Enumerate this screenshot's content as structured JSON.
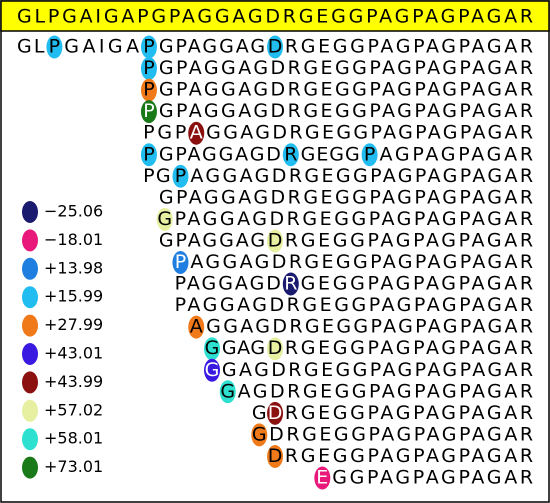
{
  "sequence": "GLPGAIGAPGPAGGAGDRGEGGPAGPAGPAGAR",
  "rows": [
    {
      "segments": [
        "GL",
        {
          "text": "P",
          "color": "#22bdf0"
        },
        "GAIGA",
        {
          "text": "P",
          "color": "#22bdf0"
        },
        "GPAGGAG",
        {
          "text": "D",
          "color": "#22bdf0"
        },
        "RGEGGPAGPAGPAGAR"
      ]
    },
    {
      "segments": [
        {
          "text": "P",
          "color": "#22bdf0"
        },
        "GPAGGAGDRGEGGPAGPAGPAGAR"
      ]
    },
    {
      "segments": [
        {
          "text": "P",
          "color": "#f07a1a"
        },
        "GPAGGAGDRGEGGPAGPAGPAGAR"
      ]
    },
    {
      "segments": [
        {
          "text": "P",
          "color": "#1a7a1a"
        },
        "GPAGGAGDRGEGGPAGPAGPAGAR"
      ]
    },
    {
      "segments": [
        "PGP",
        {
          "text": "A",
          "color": "#8b1010"
        },
        "GGAGDRGEGGPAGPAGPAGAR"
      ]
    },
    {
      "segments": [
        {
          "text": "P",
          "color": "#22bdf0"
        },
        "GPAGGAGD",
        {
          "text": "R",
          "color": "#22bdf0"
        },
        "GEGG",
        {
          "text": "P",
          "color": "#22bdf0"
        },
        "AGPAGPAGAR"
      ]
    },
    {
      "segments": [
        "PG",
        {
          "text": "P",
          "color": "#22bdf0"
        },
        "AGGAGDRGEGGPAGPAGPAGAR"
      ]
    },
    {
      "segments": [
        "GPAGGAGDRGEGGPAGPAGPAGAR"
      ]
    },
    {
      "segments": [
        {
          "text": "G",
          "color": "#e6f0a0"
        },
        "PAGGAGDRGEGGPAGPAGPAGAR"
      ]
    },
    {
      "segments": [
        "GPAGGAG",
        {
          "text": "D",
          "color": "#e6f0a0"
        },
        "RGEGGPAGPAGPAGAR"
      ]
    },
    {
      "segments": [
        {
          "text": "P",
          "color": "#1f7fe0"
        },
        "AGGAGDRGEGGPAGPAGPAGAR"
      ]
    },
    {
      "segments": [
        "PAGGAGD",
        {
          "text": "R",
          "color": "#1a1a6e"
        },
        "GEGGPAGPAGPAGAR"
      ]
    },
    {
      "segments": [
        "PAGGAGDRGEGGPAGPAGPAGAR"
      ]
    },
    {
      "segments": [
        {
          "text": "A",
          "color": "#f07a1a"
        },
        "GGAGDRGEGGPAGPAGPAGAR"
      ]
    },
    {
      "segments": [
        {
          "text": "G",
          "color": "#2ee0d0"
        },
        "GAG",
        {
          "text": "D",
          "color": "#e6f0a0"
        },
        "RGEGGPAGPAGPAGAR"
      ]
    },
    {
      "segments": [
        {
          "text": "G",
          "color": "#3a1ae0"
        },
        "GAGDRGEGGPAGPAGPAGAR"
      ]
    },
    {
      "segments": [
        {
          "text": "G",
          "color": "#2ee0d0"
        },
        "AGDRGEGGPAGPAGPAGAR"
      ]
    },
    {
      "segments": [
        "G",
        {
          "text": "D",
          "color": "#8b1010"
        },
        "RGEGGPAGPAGPAGAR"
      ]
    },
    {
      "segments": [
        {
          "text": "G",
          "color": "#f07a1a"
        },
        "DRGEGGPAGPAGPAGAR"
      ]
    },
    {
      "segments": [
        {
          "text": "D",
          "color": "#f07a1a"
        },
        "RGEGGPAGPAGPAGAR"
      ]
    },
    {
      "segments": [
        {
          "text": "E",
          "color": "#e8197a"
        },
        "GGPAGPAGPAGAR"
      ]
    }
  ],
  "legend": [
    {
      "label": "−25.06",
      "color": "#1a1a6e"
    },
    {
      "label": "−18.01",
      "color": "#e8197a"
    },
    {
      "label": "+13.98",
      "color": "#1f7fe0"
    },
    {
      "label": "+15.99",
      "color": "#22bdf0"
    },
    {
      "label": "+27.99",
      "color": "#f07a1a"
    },
    {
      "label": "+43.01",
      "color": "#3a1ae0"
    },
    {
      "label": "+43.99",
      "color": "#8b1010"
    },
    {
      "label": "+57.02",
      "color": "#e6f0a0"
    },
    {
      "label": "+58.01",
      "color": "#2ee0d0"
    },
    {
      "label": "+73.01",
      "color": "#1a7a1a"
    }
  ]
}
